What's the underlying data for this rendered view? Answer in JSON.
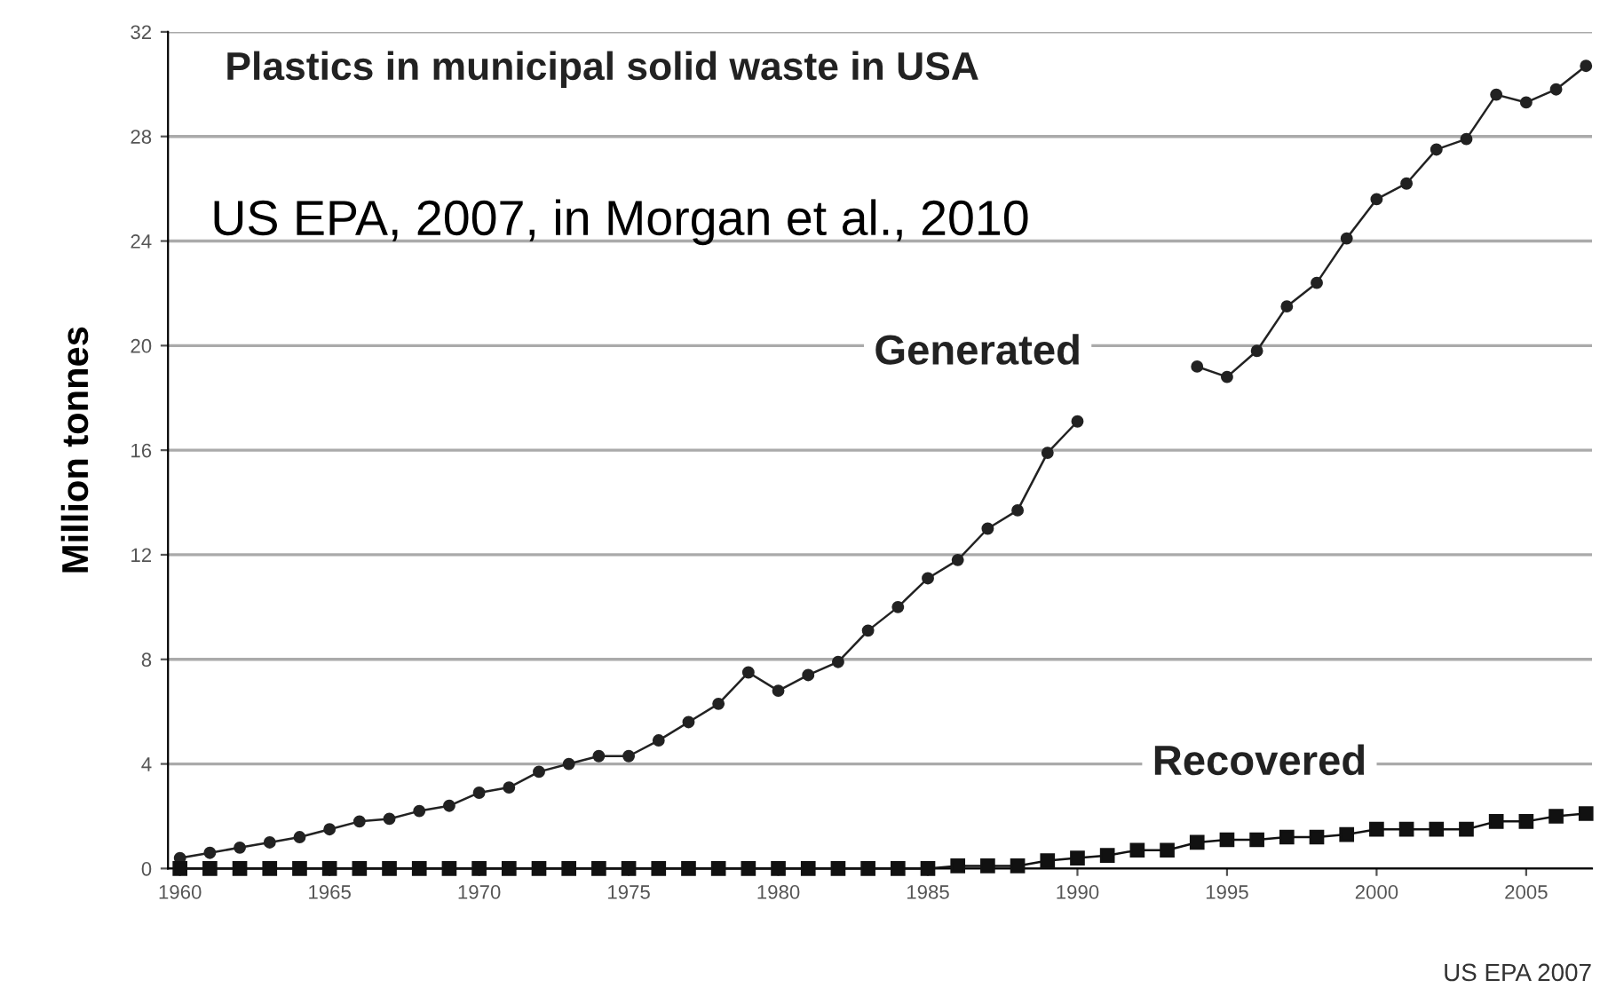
{
  "chart_data": {
    "type": "line",
    "title": "Plastics in municipal solid waste in USA",
    "ylabel": "Million tonnes",
    "x": [
      1960,
      1961,
      1962,
      1963,
      1964,
      1965,
      1966,
      1967,
      1968,
      1969,
      1970,
      1971,
      1972,
      1973,
      1974,
      1975,
      1976,
      1977,
      1978,
      1979,
      1980,
      1981,
      1982,
      1983,
      1984,
      1985,
      1986,
      1987,
      1988,
      1989,
      1990,
      1991,
      1992,
      1993,
      1994,
      1995,
      1996,
      1997,
      1998,
      1999,
      2000,
      2001,
      2002,
      2003,
      2004,
      2005,
      2006,
      2007
    ],
    "series": [
      {
        "name": "Generated",
        "color": "#222222",
        "marker": "circle",
        "values": [
          0.4,
          0.6,
          0.8,
          1.0,
          1.2,
          1.5,
          1.8,
          1.9,
          2.2,
          2.4,
          2.9,
          3.1,
          3.7,
          4.0,
          4.3,
          4.3,
          4.9,
          5.6,
          6.3,
          7.5,
          6.8,
          7.4,
          7.9,
          9.1,
          10.0,
          11.1,
          11.8,
          13.0,
          13.7,
          15.9,
          17.1,
          null,
          null,
          null,
          19.2,
          18.8,
          19.8,
          21.5,
          22.4,
          24.1,
          25.6,
          26.2,
          27.5,
          27.9,
          29.6,
          29.3,
          29.8,
          30.7
        ]
      },
      {
        "name": "Recovered",
        "color": "#111111",
        "marker": "square",
        "values": [
          0,
          0,
          0,
          0,
          0,
          0,
          0,
          0,
          0,
          0,
          0,
          0,
          0,
          0,
          0,
          0,
          0,
          0,
          0,
          0,
          0,
          0,
          0,
          0,
          0,
          0,
          0.1,
          0.1,
          0.1,
          0.3,
          0.4,
          0.5,
          0.7,
          0.7,
          1.0,
          1.1,
          1.1,
          1.2,
          1.2,
          1.3,
          1.5,
          1.5,
          1.5,
          1.5,
          1.8,
          1.8,
          2.0,
          2.1
        ]
      }
    ],
    "xlim": [
      1959.6,
      2007.2
    ],
    "xticks": [
      1960,
      1965,
      1970,
      1975,
      1980,
      1985,
      1990,
      1995,
      2000,
      2005
    ],
    "ylim": [
      0,
      32
    ],
    "yticks": [
      0,
      4,
      8,
      12,
      16,
      20,
      24,
      28,
      32
    ],
    "grid": "y",
    "line_style": "solid",
    "annotations": [
      "US EPA, 2007, in Morgan et al., 2010",
      "US EPA 2007"
    ]
  }
}
